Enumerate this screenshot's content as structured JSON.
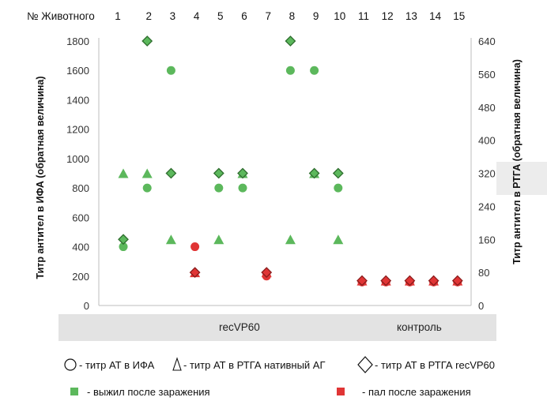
{
  "chart_data": {
    "type": "scatter",
    "header_label": "№ Животного",
    "animals": [
      "1",
      "2",
      "3",
      "4",
      "5",
      "6",
      "7",
      "8",
      "9",
      "10",
      "11",
      "12",
      "13",
      "14",
      "15"
    ],
    "ylabel_left": "Титр антител в ИФА (обратная величина)",
    "ylabel_right": "Титр антител в РТГА (обратная величина)",
    "y_left": {
      "min": 0,
      "max": 1800,
      "ticks": [
        "0",
        "200",
        "400",
        "600",
        "800",
        "1000",
        "1200",
        "1400",
        "1600",
        "1800"
      ]
    },
    "y_right": {
      "min": 0,
      "max": 640,
      "ticks": [
        "0",
        "80",
        "160",
        "240",
        "320",
        "400",
        "480",
        "560",
        "640"
      ]
    },
    "groups": [
      {
        "label": "recVP60",
        "from": 1,
        "to": 10
      },
      {
        "label": "контроль",
        "from": 11,
        "to": 15
      }
    ],
    "colors": {
      "survived": "#5cb85c",
      "died": "#e03535",
      "outline": "#2f6e2f"
    },
    "series": [
      {
        "name": "титр АТ в ИФА",
        "marker": "circle",
        "axis": "left",
        "points": [
          {
            "animal": 1,
            "value": 400,
            "status": "survived"
          },
          {
            "animal": 2,
            "value": 800,
            "status": "survived"
          },
          {
            "animal": 3,
            "value": 1600,
            "status": "survived"
          },
          {
            "animal": 4,
            "value": 400,
            "status": "died"
          },
          {
            "animal": 5,
            "value": 800,
            "status": "survived"
          },
          {
            "animal": 6,
            "value": 800,
            "status": "survived"
          },
          {
            "animal": 7,
            "value": 200,
            "status": "died"
          },
          {
            "animal": 8,
            "value": 1600,
            "status": "survived"
          },
          {
            "animal": 9,
            "value": 1600,
            "status": "survived"
          },
          {
            "animal": 10,
            "value": 800,
            "status": "survived"
          },
          {
            "animal": 11,
            "value": 160,
            "status": "died"
          },
          {
            "animal": 12,
            "value": 160,
            "status": "died"
          },
          {
            "animal": 13,
            "value": 160,
            "status": "died"
          },
          {
            "animal": 14,
            "value": 160,
            "status": "died"
          },
          {
            "animal": 15,
            "value": 160,
            "status": "died"
          }
        ]
      },
      {
        "name": "титр  АТ в РТГА  нативный АГ",
        "marker": "triangle",
        "axis": "right",
        "points": [
          {
            "animal": 1,
            "value": 320,
            "status": "survived"
          },
          {
            "animal": 2,
            "value": 320,
            "status": "survived"
          },
          {
            "animal": 3,
            "value": 160,
            "status": "survived"
          },
          {
            "animal": 4,
            "value": 80,
            "status": "died"
          },
          {
            "animal": 5,
            "value": 160,
            "status": "survived"
          },
          {
            "animal": 6,
            "value": 320,
            "status": "survived"
          },
          {
            "animal": 7,
            "value": 80,
            "status": "died"
          },
          {
            "animal": 8,
            "value": 160,
            "status": "survived"
          },
          {
            "animal": 9,
            "value": 320,
            "status": "survived"
          },
          {
            "animal": 10,
            "value": 160,
            "status": "survived"
          },
          {
            "animal": 11,
            "value": 60,
            "status": "died"
          },
          {
            "animal": 12,
            "value": 60,
            "status": "died"
          },
          {
            "animal": 13,
            "value": 60,
            "status": "died"
          },
          {
            "animal": 14,
            "value": 60,
            "status": "died"
          },
          {
            "animal": 15,
            "value": 60,
            "status": "died"
          }
        ]
      },
      {
        "name": "титр  АТ в РТГА recVP60",
        "marker": "diamond",
        "axis": "right",
        "points": [
          {
            "animal": 1,
            "value": 160,
            "status": "survived"
          },
          {
            "animal": 2,
            "value": 640,
            "status": "survived"
          },
          {
            "animal": 3,
            "value": 320,
            "status": "survived"
          },
          {
            "animal": 4,
            "value": 80,
            "status": "died"
          },
          {
            "animal": 5,
            "value": 320,
            "status": "survived"
          },
          {
            "animal": 6,
            "value": 320,
            "status": "survived"
          },
          {
            "animal": 7,
            "value": 80,
            "status": "died"
          },
          {
            "animal": 8,
            "value": 640,
            "status": "survived"
          },
          {
            "animal": 9,
            "value": 320,
            "status": "survived"
          },
          {
            "animal": 10,
            "value": 320,
            "status": "survived"
          },
          {
            "animal": 11,
            "value": 60,
            "status": "died"
          },
          {
            "animal": 12,
            "value": 60,
            "status": "died"
          },
          {
            "animal": 13,
            "value": 60,
            "status": "died"
          },
          {
            "animal": 14,
            "value": 60,
            "status": "died"
          },
          {
            "animal": 15,
            "value": 60,
            "status": "died"
          }
        ]
      }
    ],
    "legend": {
      "circle": "- титр АТ в ИФА",
      "triangle": "- титр  АТ в РТГА  нативный АГ",
      "diamond": "- титр  АТ в РТГА recVP60",
      "survived": "- выжил после заражения",
      "died": "- пал после заражения"
    }
  }
}
